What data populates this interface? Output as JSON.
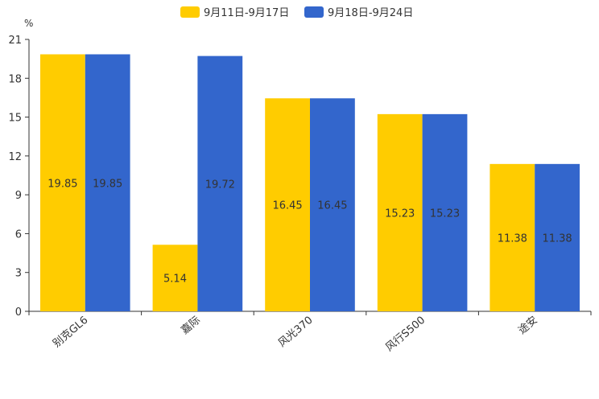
{
  "chart_data": {
    "type": "bar",
    "title": "",
    "xlabel": "",
    "ylabel": "%",
    "ylim": [
      0,
      21
    ],
    "yticks": [
      0,
      3,
      6,
      9,
      12,
      15,
      18,
      21
    ],
    "grid": false,
    "legend_position": "top-center",
    "categories": [
      "别克GL6",
      "嘉际",
      "风光370",
      "风行S500",
      "途安"
    ],
    "series": [
      {
        "name": "9月11日-9月17日",
        "color": "#FFCC00",
        "values": [
          19.85,
          5.14,
          16.45,
          15.23,
          11.38
        ]
      },
      {
        "name": "9月18日-9月24日",
        "color": "#3366CC",
        "values": [
          19.85,
          19.72,
          16.45,
          15.23,
          11.38
        ]
      }
    ]
  }
}
